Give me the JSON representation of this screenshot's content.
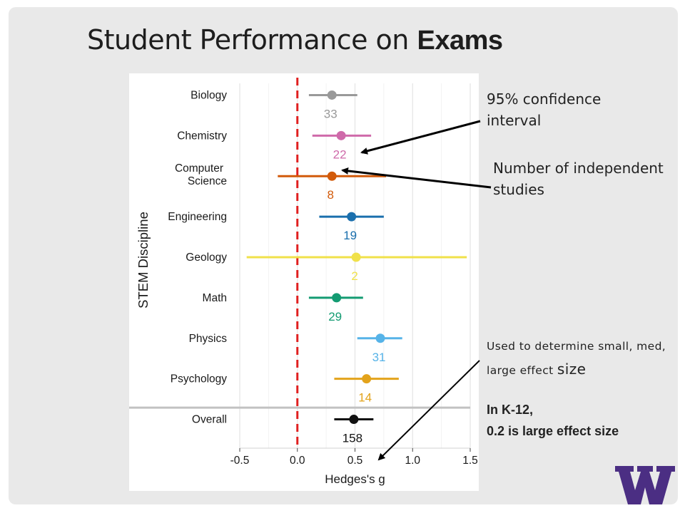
{
  "slide": {
    "title_regular": "Student Performance on ",
    "title_bold": "Exams"
  },
  "annotations": {
    "ci": "95% confidence interval",
    "studies": "Number of independent studies",
    "used_text": "Used to determine small, med, large effect ",
    "used_big": "size",
    "k12_line1": "In K-12,",
    "k12_line2": " 0.2 is large effect size"
  },
  "logo": {
    "icon": "uw-w-logo",
    "color": "#4b2e83"
  },
  "chart_data": {
    "type": "forest",
    "xlabel": "Hedges's g",
    "ylabel": "STEM Discipline",
    "xlim": [
      -0.5,
      1.5
    ],
    "xticks": [
      -0.5,
      0.0,
      0.5,
      1.0,
      1.5
    ],
    "xtick_labels": [
      "-0.5",
      "0.0",
      "0.5",
      "1.0",
      "1.5"
    ],
    "reference_line": {
      "x": 0.0,
      "style": "dashed",
      "color": "#e02020"
    },
    "grid": true,
    "items": [
      {
        "label": "Biology",
        "estimate": 0.3,
        "ci_low": 0.1,
        "ci_high": 0.52,
        "n": "33",
        "color": "#999999"
      },
      {
        "label": "Chemistry",
        "estimate": 0.38,
        "ci_low": 0.13,
        "ci_high": 0.64,
        "n": "22",
        "color": "#cf6aaa"
      },
      {
        "label": "Computer Science",
        "estimate": 0.3,
        "ci_low": -0.17,
        "ci_high": 0.77,
        "n": "8",
        "color": "#d25a0a"
      },
      {
        "label": "Engineering",
        "estimate": 0.47,
        "ci_low": 0.19,
        "ci_high": 0.75,
        "n": "19",
        "color": "#1a6fad"
      },
      {
        "label": "Geology",
        "estimate": 0.51,
        "ci_low": -0.44,
        "ci_high": 1.47,
        "n": "2",
        "color": "#f0e14a"
      },
      {
        "label": "Math",
        "estimate": 0.34,
        "ci_low": 0.1,
        "ci_high": 0.57,
        "n": "29",
        "color": "#139b72"
      },
      {
        "label": "Physics",
        "estimate": 0.72,
        "ci_low": 0.52,
        "ci_high": 0.91,
        "n": "31",
        "color": "#56b3e8"
      },
      {
        "label": "Psychology",
        "estimate": 0.6,
        "ci_low": 0.32,
        "ci_high": 0.88,
        "n": "14",
        "color": "#e3a31b"
      },
      {
        "label": "Overall",
        "estimate": 0.49,
        "ci_low": 0.32,
        "ci_high": 0.66,
        "n": "158",
        "color": "#111111"
      }
    ]
  }
}
